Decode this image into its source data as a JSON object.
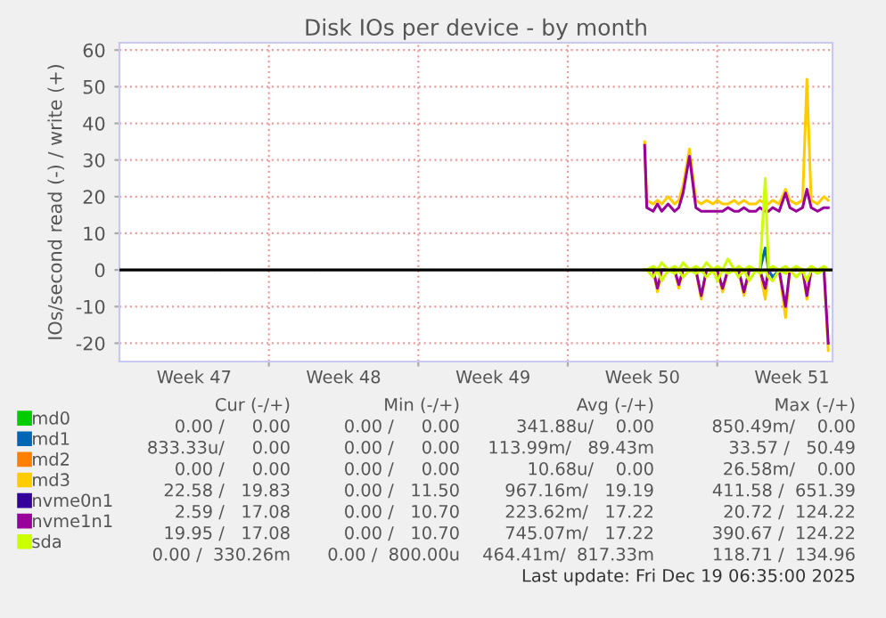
{
  "chart_data": {
    "type": "line",
    "title": "Disk IOs per device - by month",
    "ylabel": "IOs/second read (-) / write (+)",
    "x": [
      "2025-12-10T14:24",
      "2025-12-10T16:48",
      "2025-12-11T00:00",
      "2025-12-11T04:48",
      "2025-12-11T09:36",
      "2025-12-11T16:48",
      "2025-12-12T00:00",
      "2025-12-12T04:48",
      "2025-12-12T09:36",
      "2025-12-12T16:48",
      "2025-12-13T00:00",
      "2025-12-13T06:00",
      "2025-12-13T12:00",
      "2025-12-13T19:12",
      "2025-12-14T00:00",
      "2025-12-14T06:00",
      "2025-12-14T12:00",
      "2025-12-14T19:12",
      "2025-12-15T00:00",
      "2025-12-15T06:00",
      "2025-12-15T12:00",
      "2025-12-15T19:12",
      "2025-12-16T00:00",
      "2025-12-16T06:00",
      "2025-12-16T09:36",
      "2025-12-16T14:24",
      "2025-12-16T21:36",
      "2025-12-17T04:48",
      "2025-12-17T09:36",
      "2025-12-17T16:48",
      "2025-12-18T00:00",
      "2025-12-18T04:48",
      "2025-12-18T09:36",
      "2025-12-18T16:48",
      "2025-12-19T00:00",
      "2025-12-19T04:48"
    ],
    "xlim": [
      "2025-11-16",
      "2025-12-19T09:36"
    ],
    "xticks": [
      {
        "value": "2025-11-19T12:00",
        "label": "Week 47"
      },
      {
        "value": "2025-11-23",
        "label": null
      },
      {
        "value": "2025-11-26T12:00",
        "label": "Week 48"
      },
      {
        "value": "2025-11-30",
        "label": null
      },
      {
        "value": "2025-12-03T12:00",
        "label": "Week 49"
      },
      {
        "value": "2025-12-07",
        "label": null
      },
      {
        "value": "2025-12-10T12:00",
        "label": "Week 50"
      },
      {
        "value": "2025-12-14",
        "label": null
      },
      {
        "value": "2025-12-17T12:00",
        "label": "Week 51"
      }
    ],
    "ylim": [
      -25,
      62
    ],
    "yticks": [
      -20,
      -10,
      0,
      10,
      20,
      30,
      40,
      50,
      60
    ],
    "grid": true,
    "legend": "bottom left",
    "ref_lines": [
      {
        "axis": "y",
        "value": 0,
        "color": "#000000"
      }
    ],
    "series": [
      {
        "name": "md0",
        "color": "#00cc00",
        "values": [
          null,
          null,
          null,
          null,
          null,
          null,
          null,
          null,
          null,
          null,
          null,
          null,
          null,
          null,
          null,
          null,
          null,
          null,
          null,
          null,
          null,
          null,
          null,
          null,
          null,
          null,
          null,
          null,
          null,
          null,
          null,
          null,
          null,
          null,
          null,
          null
        ]
      },
      {
        "name": "md1",
        "color": "#0066b3",
        "values": [
          null,
          null,
          null,
          null,
          null,
          null,
          null,
          null,
          null,
          null,
          null,
          null,
          null,
          null,
          null,
          null,
          null,
          null,
          null,
          null,
          null,
          null,
          0,
          6,
          0,
          -2,
          0,
          null,
          null,
          null,
          null,
          null,
          null,
          null,
          null,
          null
        ]
      },
      {
        "name": "md2",
        "color": "#ff8000",
        "values": [
          null,
          null,
          null,
          null,
          null,
          null,
          null,
          null,
          null,
          null,
          null,
          null,
          null,
          null,
          null,
          null,
          null,
          null,
          null,
          null,
          null,
          null,
          null,
          null,
          null,
          null,
          null,
          null,
          null,
          null,
          null,
          null,
          null,
          null,
          null,
          null
        ]
      },
      {
        "name": "md3",
        "color": "#ffcc00",
        "values": [
          35,
          19,
          18,
          19,
          18,
          20,
          18,
          19,
          23,
          33,
          19,
          18,
          19,
          18,
          19,
          18,
          18,
          19,
          18,
          19,
          18,
          18,
          19,
          18,
          18,
          19,
          18,
          22,
          19,
          18,
          19,
          52,
          19,
          18,
          20,
          19
        ]
      },
      {
        "color": "#ffcc00",
        "values": [
          0,
          0,
          0,
          -6,
          0,
          0,
          0,
          -5,
          0,
          0,
          0,
          -8,
          0,
          0,
          0,
          -6,
          0,
          0,
          0,
          -7,
          0,
          0,
          0,
          -8,
          0,
          0,
          0,
          -13,
          0,
          0,
          0,
          -8,
          0,
          0,
          0,
          -22
        ]
      },
      {
        "name": "nvme0n1",
        "color": "#330099",
        "values": [
          null,
          null,
          null,
          null,
          null,
          null,
          null,
          null,
          null,
          null,
          null,
          null,
          null,
          null,
          null,
          null,
          null,
          null,
          null,
          null,
          null,
          null,
          null,
          null,
          null,
          null,
          null,
          null,
          null,
          null,
          null,
          null,
          null,
          null,
          null,
          null
        ]
      },
      {
        "name": "nvme1n1",
        "color": "#990099",
        "values": [
          34,
          17,
          16,
          18,
          16,
          18,
          16,
          17,
          21,
          31,
          17,
          16,
          16,
          16,
          16,
          16,
          17,
          16,
          16,
          17,
          16,
          16,
          17,
          16,
          16,
          17,
          16,
          21,
          17,
          16,
          17,
          22,
          17,
          16,
          17,
          17
        ]
      },
      {
        "color": "#990099",
        "values": [
          0,
          0,
          0,
          -5,
          0,
          0,
          0,
          -4,
          0,
          0,
          0,
          -7,
          0,
          0,
          0,
          -5,
          0,
          0,
          0,
          -6,
          0,
          0,
          0,
          -5,
          0,
          0,
          0,
          -10,
          0,
          0,
          0,
          -7,
          0,
          0,
          0,
          -20
        ]
      },
      {
        "name": "sda",
        "color": "#ccff00",
        "values": [
          0,
          0,
          1,
          0,
          2,
          0,
          1,
          0,
          2,
          0,
          1,
          0,
          2,
          0,
          1,
          0,
          3,
          0,
          1,
          0,
          1,
          0,
          0,
          25,
          0,
          1,
          0,
          1,
          0,
          1,
          0,
          0,
          1,
          0,
          1,
          0
        ]
      },
      {
        "color": "#ccff00",
        "values": [
          0,
          0,
          -2,
          0,
          -3,
          0,
          -1,
          0,
          -2,
          0,
          -1,
          0,
          -2,
          0,
          -3,
          0,
          -1,
          0,
          -2,
          0,
          -3,
          0,
          -1,
          0,
          -2,
          -3,
          0,
          -1,
          0,
          -2,
          0,
          -3,
          0,
          -1,
          0,
          0
        ]
      }
    ],
    "annotations": [
      "Cur (-/+)",
      "Min (-/+)",
      "Avg (-/+)",
      "Max (-/+)",
      "0.00 /     0.00",
      "0.00 /     0.00",
      "341.88u/    0.00",
      "850.49m/    0.00",
      "833.33u/     0.00",
      "0.00 /     0.00",
      "113.99m/   89.43m",
      "33.57 /   50.49",
      "0.00 /     0.00",
      "0.00 /     0.00",
      "10.68u/    0.00",
      "26.58m/    0.00",
      "22.58 /   19.83",
      "0.00 /   11.50",
      "967.16m/   19.19",
      "411.58 /  651.39",
      "2.59 /   17.08",
      "0.00 /   10.70",
      "223.62m/   17.22",
      "20.72 /  124.22",
      "19.95 /   17.08",
      "0.00 /   10.70",
      "745.07m/   17.22",
      "390.67 /  124.22",
      "0.00 /  330.26m",
      "0.00 /  800.00u",
      "464.41m/  817.33m",
      "118.71 /  134.96",
      "Last update: Fri Dec 19 06:35:00 2025"
    ]
  }
}
